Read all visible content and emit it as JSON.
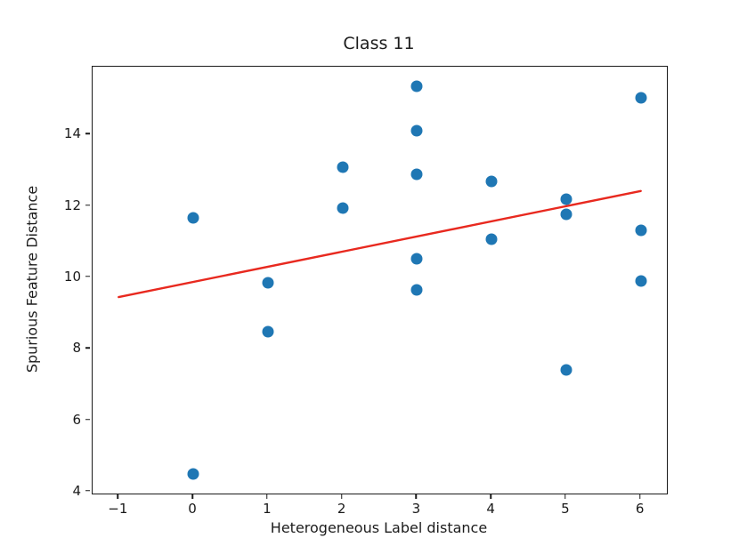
{
  "figure": {
    "title": "Class 11",
    "xlabel": "Heterogeneous Label distance",
    "ylabel": "Spurious Feature Distance"
  },
  "chart_data": {
    "type": "scatter",
    "title": "Class 11",
    "xlabel": "Heterogeneous Label distance",
    "ylabel": "Spurious Feature Distance",
    "xlim": [
      -1.35,
      6.35
    ],
    "ylim": [
      3.95,
      15.9
    ],
    "xticks": [
      -1,
      0,
      1,
      2,
      3,
      4,
      5,
      6
    ],
    "xtick_labels": [
      "−1",
      "0",
      "1",
      "2",
      "3",
      "4",
      "5",
      "6"
    ],
    "yticks": [
      4,
      6,
      8,
      10,
      12,
      14
    ],
    "ytick_labels": [
      "4",
      "6",
      "8",
      "10",
      "12",
      "14"
    ],
    "grid": false,
    "legend_position": "none",
    "marker_color": "#1f77b4",
    "line_color": "#e8291f",
    "series": [
      {
        "name": "scatter-points",
        "type": "scatter",
        "color": "#1f77b4",
        "points": [
          [
            0,
            11.67
          ],
          [
            0,
            4.5
          ],
          [
            1,
            9.85
          ],
          [
            1,
            8.48
          ],
          [
            2,
            13.08
          ],
          [
            2,
            11.95
          ],
          [
            3,
            15.35
          ],
          [
            3,
            14.1
          ],
          [
            3,
            12.9
          ],
          [
            3,
            10.53
          ],
          [
            3,
            9.65
          ],
          [
            4,
            12.69
          ],
          [
            4,
            11.08
          ],
          [
            5,
            12.2
          ],
          [
            5,
            11.77
          ],
          [
            5,
            7.4
          ],
          [
            6,
            15.03
          ],
          [
            6,
            11.31
          ],
          [
            6,
            9.9
          ]
        ]
      },
      {
        "name": "fit-line",
        "type": "line",
        "color": "#e8291f",
        "points": [
          [
            -1,
            9.45
          ],
          [
            6,
            12.42
          ]
        ]
      }
    ]
  }
}
